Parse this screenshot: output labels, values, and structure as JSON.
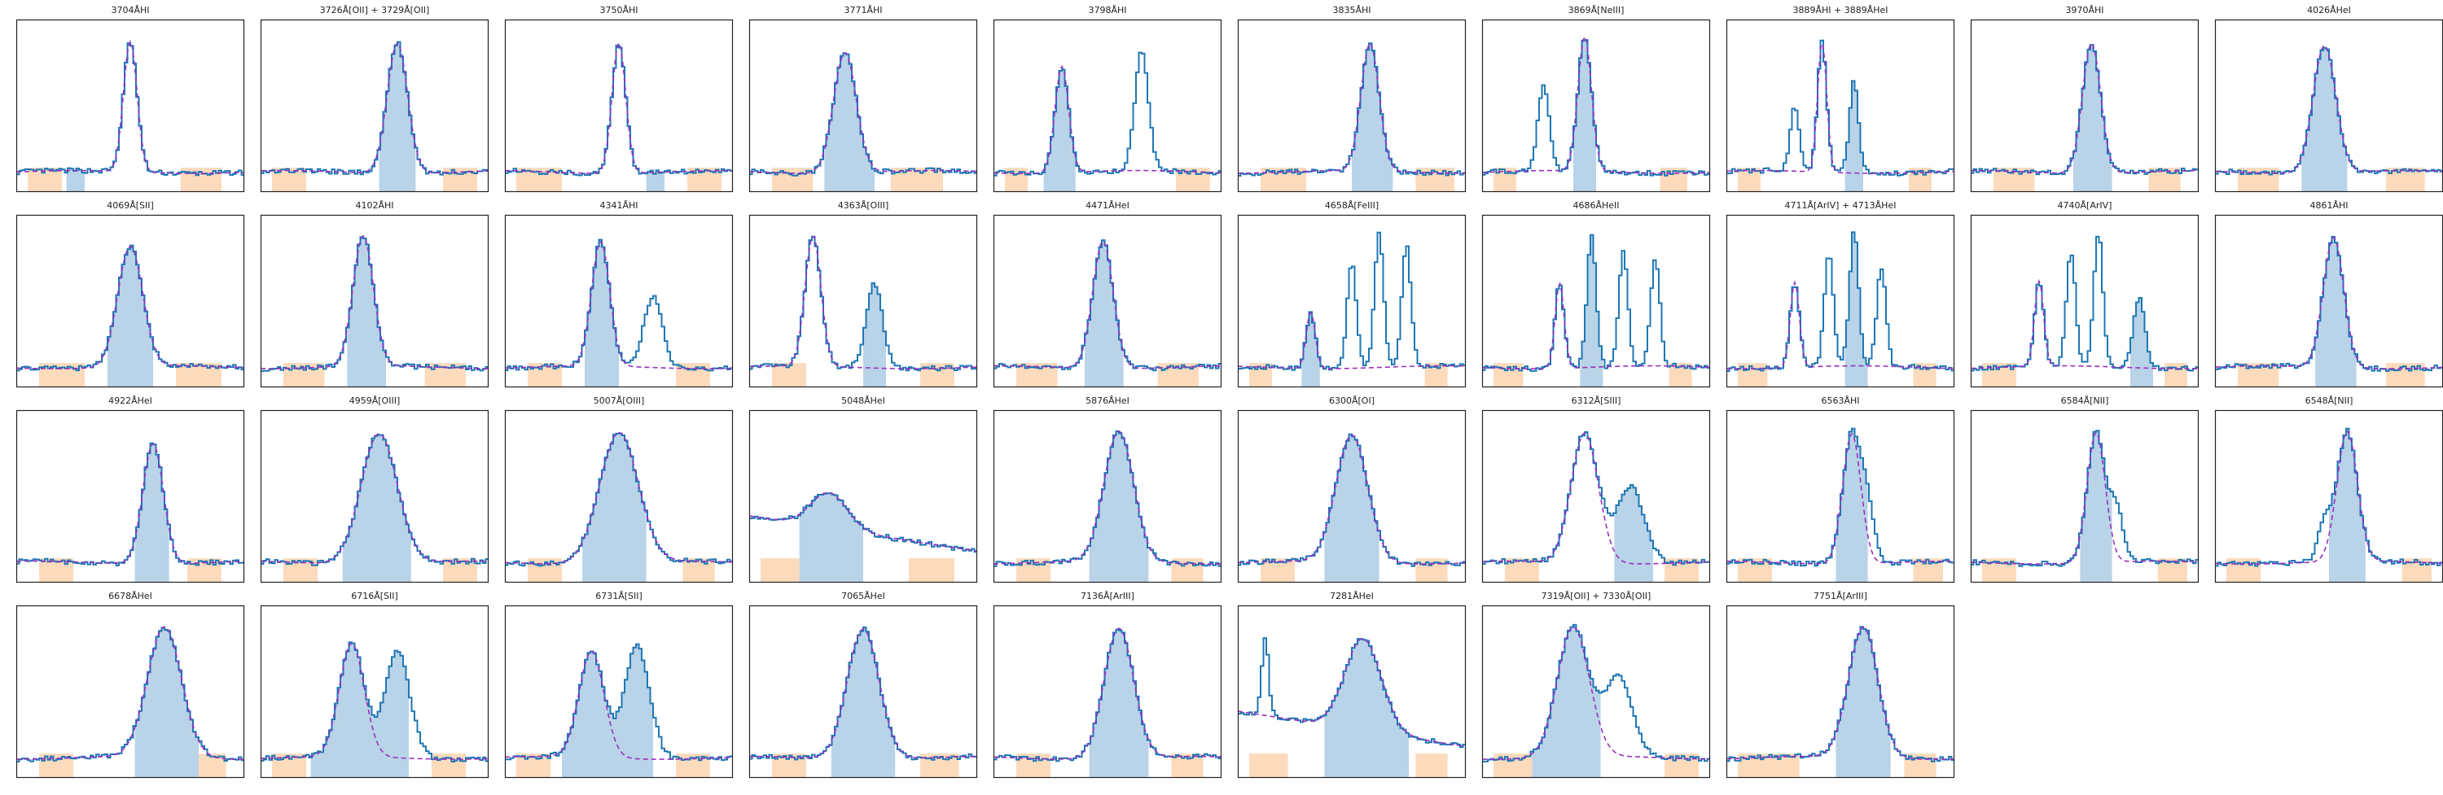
{
  "figure": {
    "colors": {
      "spectrum": "#1f77b4",
      "line_window": "#a8c8e2",
      "continuum_window": "#fcd5b0",
      "fit": "#9b30c0",
      "frame": "#222222"
    }
  },
  "chart_data": [
    {
      "type": "line",
      "title": "3704ÅHI",
      "peaks": [
        {
          "c": 0.5,
          "h": 0.92,
          "w": 0.03
        }
      ],
      "line_window": [
        0.22,
        0.3
      ],
      "continuum_windows": [
        [
          0.05,
          0.2
        ],
        [
          0.72,
          0.9
        ]
      ],
      "fit": "flat"
    },
    {
      "type": "line",
      "title": "3726Å[OII] + 3729Å[OII]",
      "peaks": [
        {
          "c": 0.6,
          "h": 0.92,
          "w": 0.045
        }
      ],
      "line_window": [
        0.52,
        0.68
      ],
      "continuum_windows": [
        [
          0.05,
          0.2
        ],
        [
          0.8,
          0.95
        ]
      ],
      "fit": "follow"
    },
    {
      "type": "line",
      "title": "3750ÅHI",
      "peaks": [
        {
          "c": 0.5,
          "h": 0.92,
          "w": 0.03
        }
      ],
      "line_window": [
        0.62,
        0.7
      ],
      "continuum_windows": [
        [
          0.05,
          0.25
        ],
        [
          0.8,
          0.95
        ]
      ],
      "fit": "flat"
    },
    {
      "type": "line",
      "title": "3771ÅHI",
      "peaks": [
        {
          "c": 0.42,
          "h": 0.85,
          "w": 0.05
        }
      ],
      "line_window": [
        0.33,
        0.55
      ],
      "continuum_windows": [
        [
          0.1,
          0.28
        ],
        [
          0.62,
          0.85
        ]
      ],
      "fit": "follow"
    },
    {
      "type": "line",
      "title": "3798ÅHI",
      "peaks": [
        {
          "c": 0.3,
          "h": 0.75,
          "w": 0.03
        },
        {
          "c": 0.65,
          "h": 0.85,
          "w": 0.03
        }
      ],
      "line_window": [
        0.22,
        0.36
      ],
      "continuum_windows": [
        [
          0.05,
          0.15
        ],
        [
          0.8,
          0.95
        ]
      ],
      "fit": "follow"
    },
    {
      "type": "line",
      "title": "3835ÅHI",
      "peaks": [
        {
          "c": 0.58,
          "h": 0.9,
          "w": 0.04
        }
      ],
      "line_window": [
        0.5,
        0.68
      ],
      "continuum_windows": [
        [
          0.1,
          0.3
        ],
        [
          0.78,
          0.95
        ]
      ],
      "fit": "follow"
    },
    {
      "type": "line",
      "title": "3869Å[NeIII]",
      "peaks": [
        {
          "c": 0.45,
          "h": 0.95,
          "w": 0.03
        },
        {
          "c": 0.27,
          "h": 0.6,
          "w": 0.025
        }
      ],
      "line_window": [
        0.4,
        0.5
      ],
      "continuum_windows": [
        [
          0.05,
          0.15
        ],
        [
          0.78,
          0.9
        ]
      ],
      "fit": "follow"
    },
    {
      "type": "line",
      "title": "3889ÅHI + 3889ÅHeI",
      "peaks": [
        {
          "c": 0.42,
          "h": 0.92,
          "w": 0.02
        },
        {
          "c": 0.56,
          "h": 0.65,
          "w": 0.02
        },
        {
          "c": 0.3,
          "h": 0.45,
          "w": 0.02
        }
      ],
      "line_window": [
        0.52,
        0.6
      ],
      "continuum_windows": [
        [
          0.05,
          0.15
        ],
        [
          0.8,
          0.9
        ]
      ],
      "fit": "follow"
    },
    {
      "type": "line",
      "title": "3970ÅHI",
      "peaks": [
        {
          "c": 0.53,
          "h": 0.92,
          "w": 0.04
        }
      ],
      "line_window": [
        0.45,
        0.62
      ],
      "continuum_windows": [
        [
          0.1,
          0.28
        ],
        [
          0.78,
          0.92
        ]
      ],
      "fit": "follow"
    },
    {
      "type": "line",
      "title": "4026ÅHeI",
      "peaks": [
        {
          "c": 0.48,
          "h": 0.9,
          "w": 0.05
        }
      ],
      "line_window": [
        0.38,
        0.58
      ],
      "continuum_windows": [
        [
          0.1,
          0.28
        ],
        [
          0.75,
          0.92
        ]
      ],
      "fit": "follow"
    },
    {
      "type": "line",
      "title": "4069Å[SII]",
      "peaks": [
        {
          "c": 0.5,
          "h": 0.85,
          "w": 0.055
        }
      ],
      "line_window": [
        0.4,
        0.6
      ],
      "continuum_windows": [
        [
          0.1,
          0.3
        ],
        [
          0.7,
          0.9
        ]
      ],
      "fit": "follow"
    },
    {
      "type": "line",
      "title": "4102ÅHI",
      "peaks": [
        {
          "c": 0.45,
          "h": 0.92,
          "w": 0.045
        }
      ],
      "line_window": [
        0.38,
        0.55
      ],
      "continuum_windows": [
        [
          0.1,
          0.28
        ],
        [
          0.72,
          0.9
        ]
      ],
      "fit": "follow"
    },
    {
      "type": "line",
      "title": "4341ÅHI",
      "peaks": [
        {
          "c": 0.42,
          "h": 0.88,
          "w": 0.04
        },
        {
          "c": 0.65,
          "h": 0.5,
          "w": 0.04
        }
      ],
      "line_window": [
        0.35,
        0.5
      ],
      "continuum_windows": [
        [
          0.1,
          0.25
        ],
        [
          0.75,
          0.9
        ]
      ],
      "fit": "follow"
    },
    {
      "type": "line",
      "title": "4363Å[OIII]",
      "peaks": [
        {
          "c": 0.28,
          "h": 0.92,
          "w": 0.035
        },
        {
          "c": 0.55,
          "h": 0.6,
          "w": 0.035
        }
      ],
      "line_window": [
        0.5,
        0.6
      ],
      "continuum_windows": [
        [
          0.1,
          0.25
        ],
        [
          0.75,
          0.9
        ]
      ],
      "fit": "follow"
    },
    {
      "type": "line",
      "title": "4471ÅHeI",
      "peaks": [
        {
          "c": 0.48,
          "h": 0.9,
          "w": 0.045
        }
      ],
      "line_window": [
        0.4,
        0.57
      ],
      "continuum_windows": [
        [
          0.1,
          0.28
        ],
        [
          0.72,
          0.9
        ]
      ],
      "fit": "follow"
    },
    {
      "type": "line",
      "title": "4658Å[FeIII]",
      "peaks": [
        {
          "c": 0.32,
          "h": 0.4,
          "w": 0.02
        },
        {
          "c": 0.5,
          "h": 0.75,
          "w": 0.02
        },
        {
          "c": 0.62,
          "h": 0.95,
          "w": 0.02
        },
        {
          "c": 0.74,
          "h": 0.85,
          "w": 0.02
        }
      ],
      "line_window": [
        0.28,
        0.36
      ],
      "continuum_windows": [
        [
          0.05,
          0.15
        ],
        [
          0.82,
          0.92
        ]
      ],
      "fit": "follow"
    },
    {
      "type": "line",
      "title": "4686ÅHeII",
      "peaks": [
        {
          "c": 0.34,
          "h": 0.6,
          "w": 0.02
        },
        {
          "c": 0.48,
          "h": 0.92,
          "w": 0.02
        },
        {
          "c": 0.62,
          "h": 0.8,
          "w": 0.02
        },
        {
          "c": 0.76,
          "h": 0.75,
          "w": 0.02
        }
      ],
      "line_window": [
        0.43,
        0.53
      ],
      "continuum_windows": [
        [
          0.05,
          0.18
        ],
        [
          0.82,
          0.92
        ]
      ],
      "fit": "follow"
    },
    {
      "type": "line",
      "title": "4711Å[ArIV] + 4713ÅHeI",
      "peaks": [
        {
          "c": 0.3,
          "h": 0.6,
          "w": 0.02
        },
        {
          "c": 0.45,
          "h": 0.8,
          "w": 0.02
        },
        {
          "c": 0.56,
          "h": 0.95,
          "w": 0.02
        },
        {
          "c": 0.68,
          "h": 0.7,
          "w": 0.02
        }
      ],
      "line_window": [
        0.52,
        0.62
      ],
      "continuum_windows": [
        [
          0.05,
          0.18
        ],
        [
          0.82,
          0.92
        ]
      ],
      "fit": "follow"
    },
    {
      "type": "line",
      "title": "4740Å[ArIV]",
      "peaks": [
        {
          "c": 0.3,
          "h": 0.6,
          "w": 0.02
        },
        {
          "c": 0.44,
          "h": 0.8,
          "w": 0.02
        },
        {
          "c": 0.56,
          "h": 0.95,
          "w": 0.02
        },
        {
          "c": 0.74,
          "h": 0.5,
          "w": 0.025
        }
      ],
      "line_window": [
        0.7,
        0.8
      ],
      "continuum_windows": [
        [
          0.05,
          0.2
        ],
        [
          0.85,
          0.95
        ]
      ],
      "fit": "follow"
    },
    {
      "type": "line",
      "title": "4861ÅHI",
      "peaks": [
        {
          "c": 0.52,
          "h": 0.92,
          "w": 0.045
        }
      ],
      "line_window": [
        0.44,
        0.62
      ],
      "continuum_windows": [
        [
          0.1,
          0.28
        ],
        [
          0.75,
          0.92
        ]
      ],
      "fit": "follow"
    },
    {
      "type": "line",
      "title": "4922ÅHeI",
      "peaks": [
        {
          "c": 0.6,
          "h": 0.85,
          "w": 0.045
        }
      ],
      "line_window": [
        0.52,
        0.67
      ],
      "continuum_windows": [
        [
          0.1,
          0.25
        ],
        [
          0.75,
          0.9
        ]
      ],
      "fit": "follow"
    },
    {
      "type": "line",
      "title": "4959Å[OIII]",
      "peaks": [
        {
          "c": 0.52,
          "h": 0.92,
          "w": 0.08
        }
      ],
      "line_window": [
        0.36,
        0.66
      ],
      "continuum_windows": [
        [
          0.1,
          0.25
        ],
        [
          0.8,
          0.95
        ]
      ],
      "fit": "follow"
    },
    {
      "type": "line",
      "title": "5007Å[OIII]",
      "peaks": [
        {
          "c": 0.5,
          "h": 0.92,
          "w": 0.085
        }
      ],
      "line_window": [
        0.34,
        0.62
      ],
      "continuum_windows": [
        [
          0.1,
          0.25
        ],
        [
          0.78,
          0.92
        ]
      ],
      "fit": "follow"
    },
    {
      "type": "line",
      "title": "5048ÅHeI",
      "peaks": [
        {
          "c": 0.35,
          "h": 0.25,
          "w": 0.08
        }
      ],
      "line_window": [
        0.22,
        0.5
      ],
      "continuum_windows": [
        [
          0.05,
          0.22
        ],
        [
          0.7,
          0.9
        ]
      ],
      "fit": "slope"
    },
    {
      "type": "line",
      "title": "5876ÅHeI",
      "peaks": [
        {
          "c": 0.55,
          "h": 0.92,
          "w": 0.065
        }
      ],
      "line_window": [
        0.42,
        0.68
      ],
      "continuum_windows": [
        [
          0.1,
          0.25
        ],
        [
          0.78,
          0.92
        ]
      ],
      "fit": "follow"
    },
    {
      "type": "line",
      "title": "6300Å[OI]",
      "peaks": [
        {
          "c": 0.5,
          "h": 0.9,
          "w": 0.07
        }
      ],
      "line_window": [
        0.38,
        0.62
      ],
      "continuum_windows": [
        [
          0.1,
          0.25
        ],
        [
          0.78,
          0.92
        ]
      ],
      "fit": "follow"
    },
    {
      "type": "line",
      "title": "6312Å[SIII]",
      "peaks": [
        {
          "c": 0.45,
          "h": 0.92,
          "w": 0.06
        },
        {
          "c": 0.65,
          "h": 0.55,
          "w": 0.06
        }
      ],
      "line_window": [
        0.58,
        0.75
      ],
      "continuum_windows": [
        [
          0.1,
          0.25
        ],
        [
          0.8,
          0.95
        ]
      ],
      "fit": "follow"
    },
    {
      "type": "line",
      "title": "6563ÅHI",
      "peaks": [
        {
          "c": 0.55,
          "h": 0.92,
          "w": 0.04
        },
        {
          "c": 0.62,
          "h": 0.35,
          "w": 0.03
        }
      ],
      "line_window": [
        0.48,
        0.62
      ],
      "continuum_windows": [
        [
          0.05,
          0.2
        ],
        [
          0.82,
          0.95
        ]
      ],
      "fit": "follow"
    },
    {
      "type": "line",
      "title": "6584Å[NII]",
      "peaks": [
        {
          "c": 0.55,
          "h": 0.92,
          "w": 0.04
        },
        {
          "c": 0.64,
          "h": 0.35,
          "w": 0.03
        }
      ],
      "line_window": [
        0.48,
        0.62
      ],
      "continuum_windows": [
        [
          0.05,
          0.2
        ],
        [
          0.82,
          0.95
        ]
      ],
      "fit": "follow"
    },
    {
      "type": "line",
      "title": "6548Å[NII]",
      "peaks": [
        {
          "c": 0.58,
          "h": 0.92,
          "w": 0.045
        },
        {
          "c": 0.48,
          "h": 0.25,
          "w": 0.03
        }
      ],
      "line_window": [
        0.5,
        0.66
      ],
      "continuum_windows": [
        [
          0.05,
          0.2
        ],
        [
          0.82,
          0.95
        ]
      ],
      "fit": "follow"
    },
    {
      "type": "line",
      "title": "6678ÅHeI",
      "peaks": [
        {
          "c": 0.65,
          "h": 0.92,
          "w": 0.075
        }
      ],
      "line_window": [
        0.52,
        0.8
      ],
      "continuum_windows": [
        [
          0.1,
          0.25
        ],
        [
          0.8,
          0.92
        ]
      ],
      "fit": "follow"
    },
    {
      "type": "line",
      "title": "6716Å[SII]",
      "peaks": [
        {
          "c": 0.4,
          "h": 0.8,
          "w": 0.055
        },
        {
          "c": 0.6,
          "h": 0.75,
          "w": 0.055
        }
      ],
      "line_window": [
        0.22,
        0.65
      ],
      "continuum_windows": [
        [
          0.05,
          0.2
        ],
        [
          0.75,
          0.9
        ]
      ],
      "fit": "follow"
    },
    {
      "type": "line",
      "title": "6731Å[SII]",
      "peaks": [
        {
          "c": 0.38,
          "h": 0.75,
          "w": 0.055
        },
        {
          "c": 0.58,
          "h": 0.8,
          "w": 0.055
        }
      ],
      "line_window": [
        0.25,
        0.65
      ],
      "continuum_windows": [
        [
          0.05,
          0.2
        ],
        [
          0.75,
          0.9
        ]
      ],
      "fit": "follow"
    },
    {
      "type": "line",
      "title": "7065ÅHeI",
      "peaks": [
        {
          "c": 0.5,
          "h": 0.92,
          "w": 0.07
        }
      ],
      "line_window": [
        0.36,
        0.64
      ],
      "continuum_windows": [
        [
          0.1,
          0.25
        ],
        [
          0.75,
          0.92
        ]
      ],
      "fit": "follow"
    },
    {
      "type": "line",
      "title": "7136Å[ArIII]",
      "peaks": [
        {
          "c": 0.55,
          "h": 0.92,
          "w": 0.065
        }
      ],
      "line_window": [
        0.42,
        0.68
      ],
      "continuum_windows": [
        [
          0.1,
          0.25
        ],
        [
          0.78,
          0.92
        ]
      ],
      "fit": "follow"
    },
    {
      "type": "line",
      "title": "7281ÅHeI",
      "peaks": [
        {
          "c": 0.55,
          "h": 0.65,
          "w": 0.08
        },
        {
          "c": 0.12,
          "h": 0.55,
          "w": 0.015
        }
      ],
      "line_window": [
        0.38,
        0.75
      ],
      "continuum_windows": [
        [
          0.05,
          0.22
        ],
        [
          0.78,
          0.92
        ]
      ],
      "fit": "slope"
    },
    {
      "type": "line",
      "title": "7319Å[OII] + 7330Å[OII]",
      "peaks": [
        {
          "c": 0.4,
          "h": 0.92,
          "w": 0.07
        },
        {
          "c": 0.6,
          "h": 0.55,
          "w": 0.06
        }
      ],
      "line_window": [
        0.22,
        0.52
      ],
      "continuum_windows": [
        [
          0.05,
          0.22
        ],
        [
          0.8,
          0.95
        ]
      ],
      "fit": "follow"
    },
    {
      "type": "line",
      "title": "7751Å[ArIII]",
      "peaks": [
        {
          "c": 0.6,
          "h": 0.92,
          "w": 0.065
        }
      ],
      "line_window": [
        0.48,
        0.72
      ],
      "continuum_windows": [
        [
          0.05,
          0.32
        ],
        [
          0.78,
          0.92
        ]
      ],
      "fit": "follow"
    }
  ]
}
